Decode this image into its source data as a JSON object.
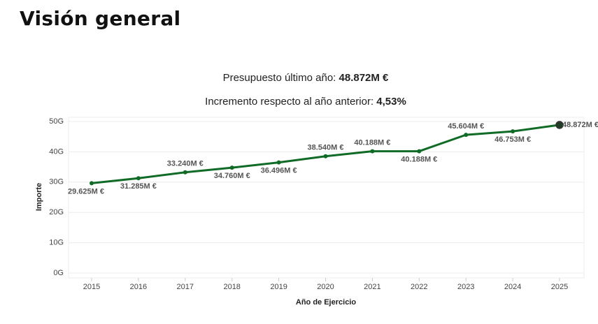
{
  "header": {
    "title": "Visión general"
  },
  "summary": {
    "budget_label": "Presupuesto último año:",
    "budget_value": "48.872M €",
    "increment_label": "Incremento respecto al año anterior:",
    "increment_value": "4,53%"
  },
  "chart_data": {
    "type": "line",
    "y_label": "Importe",
    "x_label": "Año de Ejercicio",
    "categories": [
      "2015",
      "2016",
      "2017",
      "2018",
      "2019",
      "2020",
      "2021",
      "2022",
      "2023",
      "2024",
      "2025"
    ],
    "values": [
      29625000000,
      31285000000,
      33240000000,
      34760000000,
      36496000000,
      38540000000,
      40188000000,
      40188000000,
      45604000000,
      46753000000,
      48872000000
    ],
    "value_labels": [
      "29.625M €",
      "31.285M €",
      "33.240M €",
      "34.760M €",
      "36.496M €",
      "38.540M €",
      "40.188M €",
      "40.188M €",
      "45.604M €",
      "46.753M €",
      "48.872M €"
    ],
    "color": "#0f6b25",
    "ylim": [
      0,
      50000000000
    ],
    "yticks": [
      {
        "value": 0,
        "label": "0G"
      },
      {
        "value": 10000000000,
        "label": "10G"
      },
      {
        "value": 20000000000,
        "label": "20G"
      },
      {
        "value": 30000000000,
        "label": "30G"
      },
      {
        "value": 40000000000,
        "label": "40G"
      },
      {
        "value": 50000000000,
        "label": "50G"
      }
    ],
    "grid": true
  }
}
